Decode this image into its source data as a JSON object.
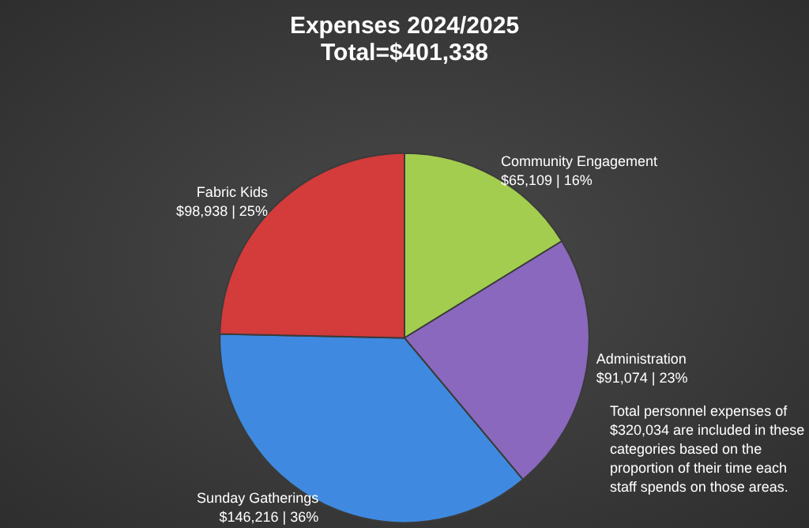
{
  "chart_data": {
    "type": "pie",
    "title": "Expenses 2024/2025",
    "subtitle": "Total=$401,338",
    "categories": [
      "Community Engagement",
      "Administration",
      "Sunday Gatherings",
      "Fabric Kids"
    ],
    "values": [
      65109,
      91074,
      146216,
      98938
    ],
    "value_labels": [
      "$65,109 | 16%",
      "$91,074 | 23%",
      "$146,216 | 36%",
      "$98,938 | 25%"
    ],
    "colors": [
      "#a3cd4e",
      "#8a68bd",
      "#3f8ae0",
      "#d43b3b"
    ],
    "annotations": [
      "Total personnel expenses of $320,034 are included in these categories based on the proportion of their time each staff spends on those areas."
    ],
    "legend": false
  }
}
